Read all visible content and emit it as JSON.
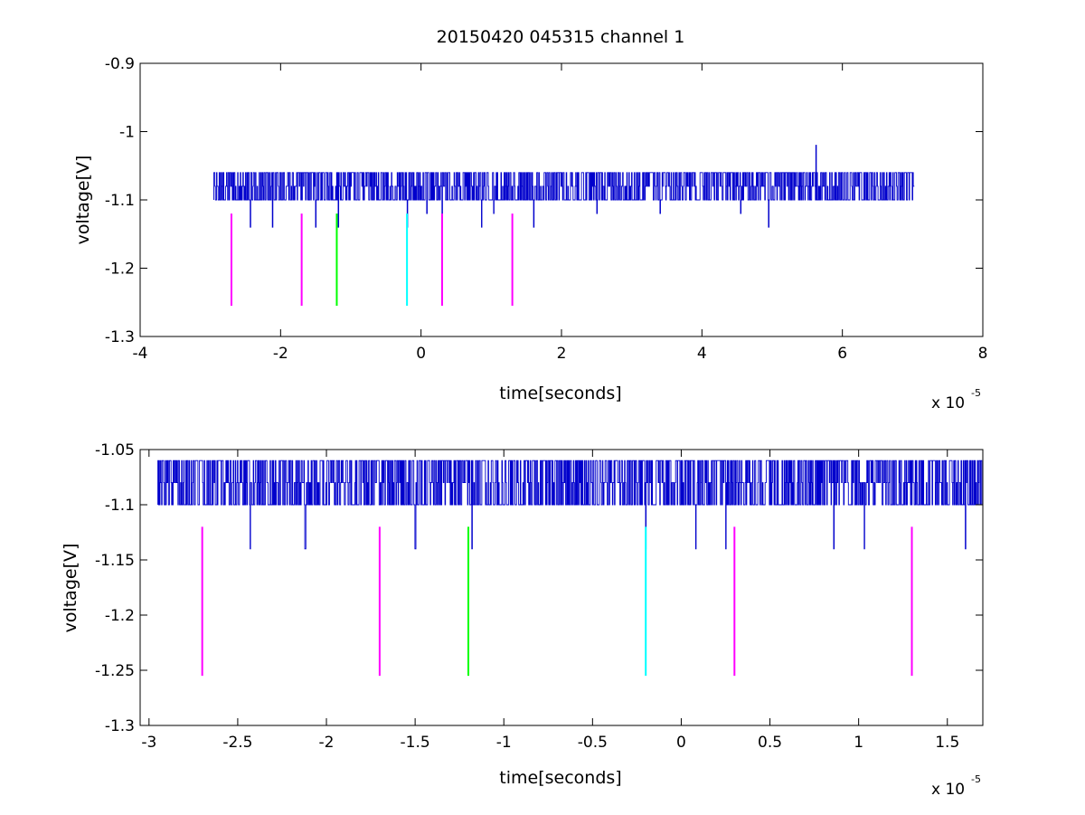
{
  "figure": {
    "title": "20150420 045315 channel 1",
    "background": "#ffffff"
  },
  "colors": {
    "signal": "#0000cc",
    "magenta": "#ff00ff",
    "green": "#00ff00",
    "cyan": "#00ffff",
    "axes": "#000000"
  },
  "chart_data": [
    {
      "type": "line",
      "title": "20150420 045315 channel 1",
      "xlabel": "time[seconds]",
      "ylabel": "voltage[V]",
      "x_multiplier_base": "x 10",
      "x_multiplier_exp": "-5",
      "xlim": [
        -4,
        8
      ],
      "ylim": [
        -1.3,
        -0.9
      ],
      "xticks": [
        -4,
        -2,
        0,
        2,
        4,
        6,
        8
      ],
      "xtick_labels": [
        "-4",
        "-2",
        "0",
        "2",
        "4",
        "6",
        "8"
      ],
      "yticks": [
        -1.3,
        -1.2,
        -1.1,
        -1.0,
        -0.9
      ],
      "ytick_labels": [
        "-1.3",
        "-1.2",
        "-1.1",
        "-1",
        "-0.9"
      ],
      "grid": false,
      "series": [
        {
          "color": "#0000cc",
          "x_range": [
            -2.95,
            7.02
          ],
          "levels": [
            -1.06,
            -1.08,
            -1.1
          ],
          "dips": [
            [
              -2.43,
              -1.14
            ],
            [
              -2.12,
              -1.14
            ],
            [
              -1.5,
              -1.14
            ],
            [
              -1.18,
              -1.14
            ],
            [
              -0.2,
              -1.14
            ],
            [
              0.08,
              -1.12
            ],
            [
              0.3,
              -1.14
            ],
            [
              0.86,
              -1.14
            ],
            [
              1.03,
              -1.12
            ],
            [
              1.6,
              -1.14
            ],
            [
              2.5,
              -1.12
            ],
            [
              3.4,
              -1.12
            ],
            [
              4.55,
              -1.12
            ],
            [
              4.95,
              -1.14
            ]
          ],
          "spike": [
            5.62,
            -1.02
          ]
        }
      ],
      "markers": [
        {
          "x": -2.7,
          "y1": -1.12,
          "y2": -1.255,
          "color": "#ff00ff"
        },
        {
          "x": -1.7,
          "y1": -1.12,
          "y2": -1.255,
          "color": "#ff00ff"
        },
        {
          "x": -1.2,
          "y1": -1.12,
          "y2": -1.255,
          "color": "#00ff00"
        },
        {
          "x": -0.2,
          "y1": -1.12,
          "y2": -1.255,
          "color": "#00ffff"
        },
        {
          "x": 0.3,
          "y1": -1.12,
          "y2": -1.255,
          "color": "#ff00ff"
        },
        {
          "x": 1.3,
          "y1": -1.12,
          "y2": -1.255,
          "color": "#ff00ff"
        }
      ]
    },
    {
      "type": "line",
      "title": "",
      "xlabel": "time[seconds]",
      "ylabel": "voltage[V]",
      "x_multiplier_base": "x 10",
      "x_multiplier_exp": "-5",
      "xlim": [
        -3.05,
        1.7
      ],
      "ylim": [
        -1.3,
        -1.05
      ],
      "xticks": [
        -3,
        -2.5,
        -2,
        -1.5,
        -1,
        -0.5,
        0,
        0.5,
        1,
        1.5
      ],
      "xtick_labels": [
        "-3",
        "-2.5",
        "-2",
        "-1.5",
        "-1",
        "-0.5",
        "0",
        "0.5",
        "1",
        "1.5"
      ],
      "yticks": [
        -1.3,
        -1.25,
        -1.2,
        -1.15,
        -1.1,
        -1.05
      ],
      "ytick_labels": [
        "-1.3",
        "-1.25",
        "-1.2",
        "-1.15",
        "-1.1",
        "-1.05"
      ],
      "grid": false,
      "series": [
        {
          "color": "#0000cc",
          "x_range": [
            -2.95,
            1.7
          ],
          "levels": [
            -1.06,
            -1.08,
            -1.1
          ],
          "dips": [
            [
              -2.43,
              -1.14
            ],
            [
              -2.12,
              -1.14
            ],
            [
              -1.5,
              -1.14
            ],
            [
              -1.18,
              -1.14
            ],
            [
              -0.2,
              -1.14
            ],
            [
              0.08,
              -1.14
            ],
            [
              0.25,
              -1.14
            ],
            [
              0.86,
              -1.14
            ],
            [
              1.03,
              -1.14
            ],
            [
              1.6,
              -1.14
            ]
          ],
          "spike": null
        }
      ],
      "markers": [
        {
          "x": -2.7,
          "y1": -1.12,
          "y2": -1.255,
          "color": "#ff00ff"
        },
        {
          "x": -1.7,
          "y1": -1.12,
          "y2": -1.255,
          "color": "#ff00ff"
        },
        {
          "x": -1.2,
          "y1": -1.12,
          "y2": -1.255,
          "color": "#00ff00"
        },
        {
          "x": -0.2,
          "y1": -1.12,
          "y2": -1.255,
          "color": "#00ffff"
        },
        {
          "x": 0.3,
          "y1": -1.12,
          "y2": -1.255,
          "color": "#ff00ff"
        },
        {
          "x": 1.3,
          "y1": -1.12,
          "y2": -1.255,
          "color": "#ff00ff"
        }
      ]
    }
  ]
}
